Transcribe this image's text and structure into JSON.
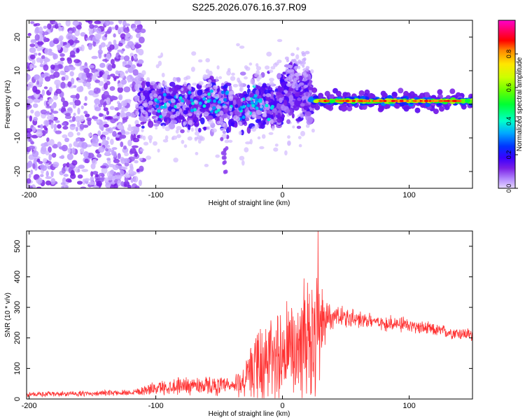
{
  "title": "S225.2026.076.16.37.R09",
  "chart_data": [
    {
      "type": "heatmap",
      "name": "spectrogram",
      "xlabel": "Height of straight line (km)",
      "ylabel": "Frequency (Hz)",
      "xlim": [
        -202,
        150
      ],
      "ylim": [
        -25,
        25
      ],
      "xticks": [
        -200,
        -100,
        0,
        100
      ],
      "yticks": [
        -20,
        -10,
        0,
        10,
        20
      ],
      "colorbar": {
        "label": "Normalized spectral amplitude",
        "range": [
          0,
          1
        ],
        "ticks": [
          0.0,
          0.2,
          0.4,
          0.6,
          0.8
        ],
        "tick_labels": [
          "0.0",
          "0.2",
          "0.4",
          "0.6",
          "0.8"
        ],
        "colormap": [
          "#e6d8ff",
          "#b892ff",
          "#7a1fe6",
          "#3a00ff",
          "#0033ff",
          "#00aaff",
          "#00ffcc",
          "#00ff33",
          "#66ff00",
          "#ccff00",
          "#ffe600",
          "#ff8800",
          "#ff0000",
          "#ff0066",
          "#ff00cc"
        ]
      },
      "regions": [
        {
          "x_range": [
            -202,
            -110
          ],
          "freq_range": [
            -25,
            25
          ],
          "amplitude": 0.05,
          "description": "diffuse noise"
        },
        {
          "x_range": [
            -110,
            0
          ],
          "freq_center": 0,
          "freq_spread": 5,
          "amplitude": 0.2
        },
        {
          "x_range": [
            0,
            20
          ],
          "freq_center": 4,
          "freq_spread": 8,
          "amplitude": 0.2
        },
        {
          "x_range": [
            25,
            150
          ],
          "freq_center": 1,
          "freq_spread": 1.5,
          "amplitude": 0.85
        }
      ]
    },
    {
      "type": "line",
      "name": "snr",
      "xlabel": "Height of straight line (km)",
      "ylabel": "SNR (10 * v/v)",
      "xlim": [
        -202,
        150
      ],
      "ylim": [
        0,
        550
      ],
      "xticks": [
        -200,
        -100,
        0,
        100
      ],
      "yticks": [
        0,
        100,
        200,
        300,
        400,
        500
      ],
      "color": "#ff3333",
      "series": [
        {
          "name": "SNR",
          "envelope_x": [
            -202,
            -150,
            -120,
            -100,
            -80,
            -60,
            -40,
            -30,
            -20,
            -10,
            0,
            10,
            20,
            25,
            30,
            35,
            40,
            50,
            60,
            80,
            100,
            120,
            150
          ],
          "envelope_mean": [
            15,
            18,
            22,
            35,
            45,
            45,
            40,
            60,
            100,
            130,
            150,
            160,
            170,
            180,
            230,
            270,
            270,
            265,
            260,
            250,
            240,
            225,
            210
          ],
          "envelope_spread": [
            10,
            10,
            12,
            25,
            35,
            35,
            35,
            70,
            140,
            170,
            200,
            220,
            240,
            300,
            200,
            60,
            50,
            40,
            35,
            30,
            30,
            25,
            25
          ],
          "peak": {
            "x": 28,
            "y": 550
          }
        }
      ]
    }
  ]
}
